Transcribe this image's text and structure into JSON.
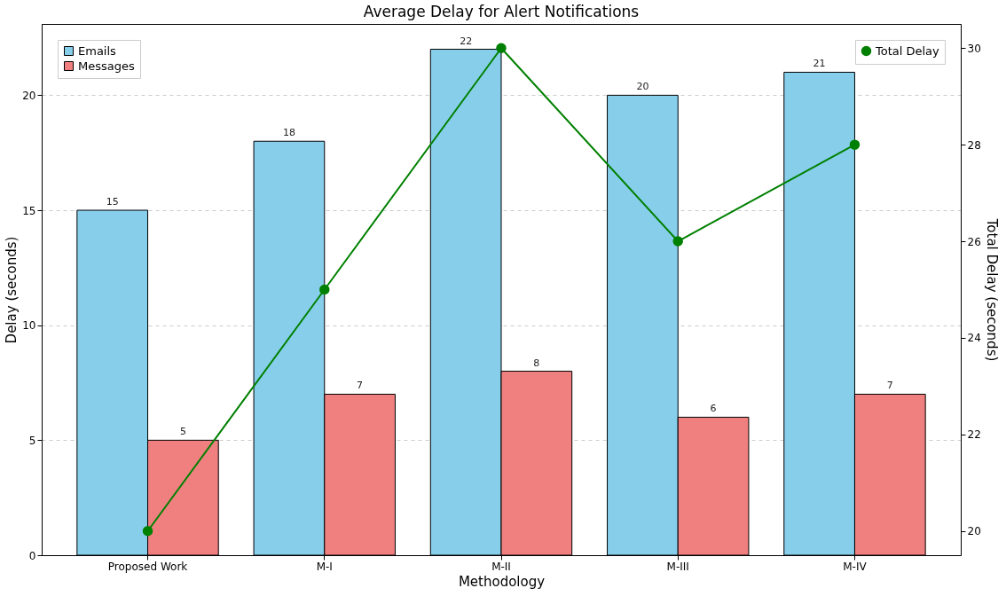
{
  "chart_data": {
    "type": "bar",
    "title": "Average Delay for Alert Notifications",
    "xlabel": "Methodology",
    "ylabel": "Delay (seconds)",
    "y2label": "Total Delay (seconds)",
    "categories": [
      "Proposed Work",
      "M-I",
      "M-II",
      "M-III",
      "M-IV"
    ],
    "series": [
      {
        "name": "Emails",
        "color": "#87ceeb",
        "values": [
          15,
          18,
          22,
          20,
          21
        ],
        "data_labels": true
      },
      {
        "name": "Messages",
        "color": "#f08080",
        "values": [
          5,
          7,
          8,
          6,
          7
        ],
        "data_labels": true
      },
      {
        "name": "Total Delay",
        "type": "line",
        "axis": "y2",
        "color": "#008000",
        "values": [
          20,
          25,
          30,
          26,
          28
        ],
        "marker": "circle"
      }
    ],
    "ylim": [
      0,
      23.1
    ],
    "yticks": [
      0,
      5,
      10,
      15,
      20
    ],
    "y2lim": [
      19.5,
      30.5
    ],
    "y2ticks": [
      20,
      22,
      24,
      26,
      28,
      30
    ],
    "grid": "y",
    "legend": "top left"
  }
}
